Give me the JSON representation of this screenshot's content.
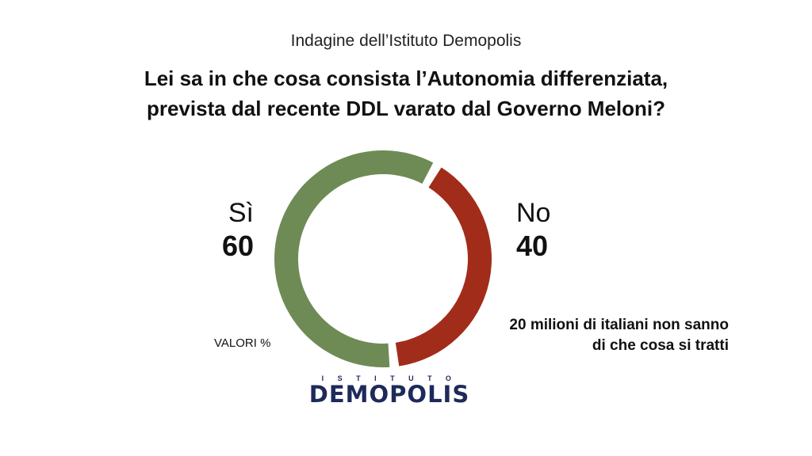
{
  "header": {
    "subtitle": "Indagine dell’Istituto Demopolis",
    "title_line1": "Lei sa in che cosa consista l’Autonomia differenziata,",
    "title_line2": "prevista dal recente DDL varato dal Governo Meloni?"
  },
  "chart_data": {
    "type": "pie",
    "variant": "donut",
    "unit_label": "VALORI %",
    "categories": [
      "Sì",
      "No"
    ],
    "values": [
      60,
      40
    ],
    "colors": [
      "#6e8b56",
      "#a22c1a"
    ]
  },
  "labels": {
    "si_name": "Sì",
    "si_value": "60",
    "no_name": "No",
    "no_value": "40"
  },
  "note": {
    "line1": "20 milioni di italiani non sanno",
    "line2": "di che cosa si tratti"
  },
  "logo": {
    "top": "ISTITUTO",
    "main": "DEMOPOLIS"
  }
}
